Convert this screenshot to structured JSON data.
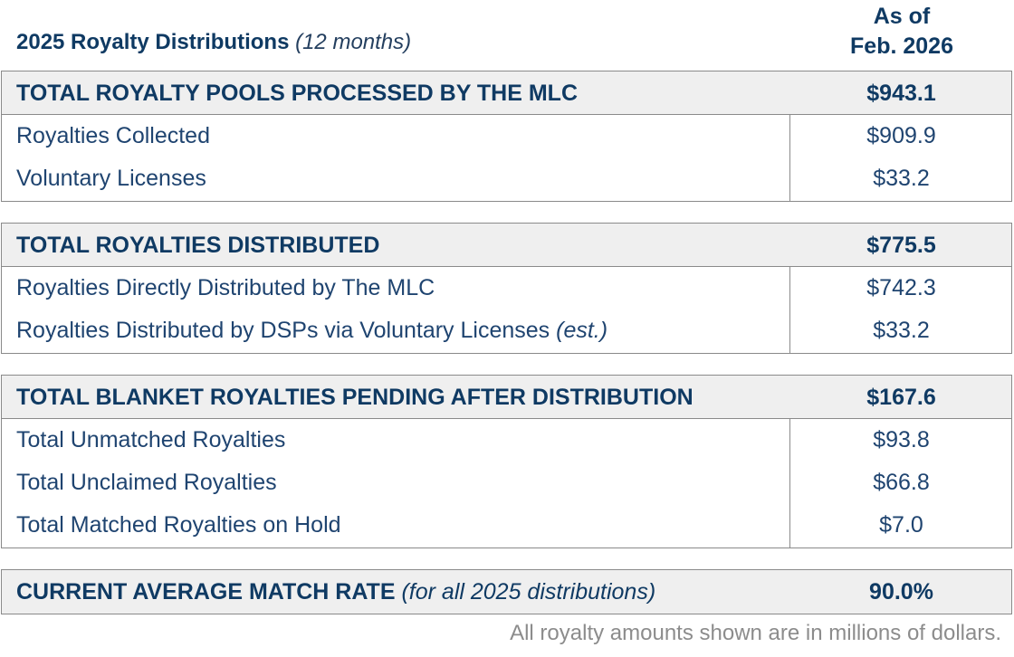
{
  "header": {
    "title": "2025 Royalty Distributions",
    "title_sub": "(12 months)",
    "column_line1": "As of",
    "column_line2": "Feb. 2026"
  },
  "sections": [
    {
      "total": {
        "label": "TOTAL ROYALTY POOLS PROCESSED BY THE MLC",
        "value": "$943.1"
      },
      "rows": [
        {
          "label": "Royalties Collected",
          "value": "$909.9"
        },
        {
          "label": "Voluntary Licenses",
          "value": "$33.2"
        }
      ]
    },
    {
      "total": {
        "label": "TOTAL ROYALTIES DISTRIBUTED",
        "value": "$775.5"
      },
      "rows": [
        {
          "label": "Royalties Directly Distributed by The MLC",
          "value": "$742.3"
        },
        {
          "label": "Royalties Distributed by DSPs via Voluntary Licenses",
          "label_note": "(est.)",
          "value": "$33.2"
        }
      ]
    },
    {
      "total": {
        "label": "TOTAL BLANKET ROYALTIES PENDING AFTER DISTRIBUTION",
        "value": "$167.6"
      },
      "rows": [
        {
          "label": "Total Unmatched Royalties",
          "value": "$93.8"
        },
        {
          "label": "Total Unclaimed Royalties",
          "value": "$66.8"
        },
        {
          "label": "Total Matched Royalties on Hold",
          "value": "$7.0"
        }
      ]
    },
    {
      "total": {
        "label": "CURRENT AVERAGE MATCH RATE",
        "label_note": "(for all 2025 distributions)",
        "value": "90.0%"
      }
    }
  ],
  "footnote": "All royalty amounts shown are in millions of dollars."
}
